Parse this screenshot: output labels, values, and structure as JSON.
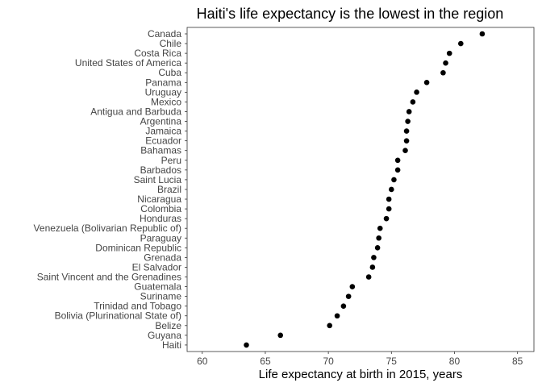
{
  "chart_data": {
    "type": "scatter",
    "title": "Haiti's life expectancy is the lowest in the region",
    "xlabel": "Life expectancy at birth in 2015, years",
    "ylabel": "",
    "xlim": [
      58.8,
      86.3
    ],
    "xticks": [
      60,
      65,
      70,
      75,
      80,
      85
    ],
    "grid": false,
    "point_color": "#000000",
    "frame_color": "#333333",
    "categories": [
      "Canada",
      "Chile",
      "Costa Rica",
      "United States of America",
      "Cuba",
      "Panama",
      "Uruguay",
      "Mexico",
      "Antigua and Barbuda",
      "Argentina",
      "Jamaica",
      "Ecuador",
      "Bahamas",
      "Peru",
      "Barbados",
      "Saint Lucia",
      "Brazil",
      "Nicaragua",
      "Colombia",
      "Honduras",
      "Venezuela (Bolivarian Republic of)",
      "Paraguay",
      "Dominican Republic",
      "Grenada",
      "El Salvador",
      "Saint Vincent and the Grenadines",
      "Guatemala",
      "Suriname",
      "Trinidad and Tobago",
      "Bolivia (Plurinational State of)",
      "Belize",
      "Guyana",
      "Haiti"
    ],
    "values": [
      82.2,
      80.5,
      79.6,
      79.3,
      79.1,
      77.8,
      77.0,
      76.7,
      76.4,
      76.3,
      76.2,
      76.2,
      76.1,
      75.5,
      75.5,
      75.2,
      75.0,
      74.8,
      74.8,
      74.6,
      74.1,
      74.0,
      73.9,
      73.6,
      73.5,
      73.2,
      71.9,
      71.6,
      71.2,
      70.7,
      70.1,
      66.2,
      63.5
    ]
  }
}
